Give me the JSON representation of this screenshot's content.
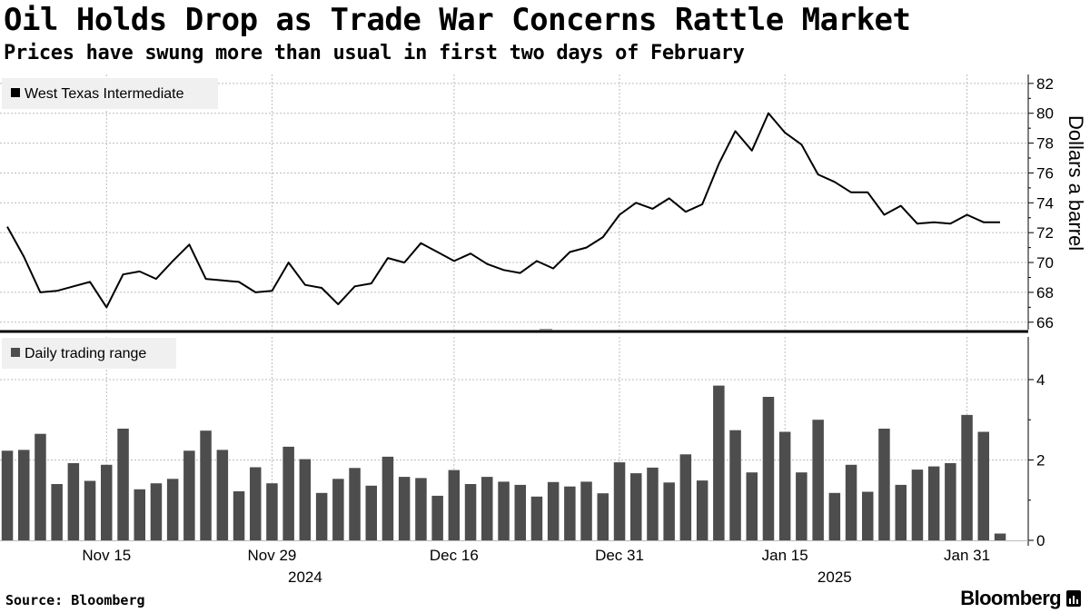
{
  "header": {
    "title": "Oil Holds Drop as Trade War Concerns Rattle Market",
    "subtitle": "Prices have swung more than usual in first two days of February"
  },
  "footer": {
    "source": "Source: Bloomberg",
    "brand": "Bloomberg"
  },
  "chart_data": [
    {
      "type": "line",
      "title": "West Texas Intermediate",
      "legend": "West Texas Intermediate",
      "legend_position": "top-left",
      "ylabel": "Dollars a barrel",
      "ylim": [
        65.5,
        82.6
      ],
      "yticks": [
        66,
        68,
        70,
        72,
        74,
        76,
        78,
        80,
        82
      ],
      "grid": true,
      "color": "#000000",
      "series": [
        {
          "name": "West Texas Intermediate",
          "values": [
            72.4,
            70.4,
            68.0,
            68.1,
            68.4,
            68.7,
            67.0,
            69.2,
            69.4,
            68.9,
            70.1,
            71.2,
            68.9,
            68.8,
            68.7,
            68.0,
            68.1,
            70.0,
            68.5,
            68.3,
            67.2,
            68.4,
            68.6,
            70.3,
            70.0,
            71.3,
            70.7,
            70.1,
            70.6,
            69.9,
            69.5,
            69.3,
            70.1,
            69.6,
            70.7,
            71.0,
            71.7,
            73.2,
            74.0,
            73.6,
            74.3,
            73.4,
            73.9,
            76.6,
            78.8,
            77.5,
            80.0,
            78.7,
            77.9,
            75.9,
            75.4,
            74.7,
            74.7,
            73.2,
            73.8,
            72.6,
            72.7,
            72.6,
            73.2,
            72.7,
            72.7
          ]
        }
      ]
    },
    {
      "type": "bar",
      "title": "Daily trading range",
      "legend": "Daily trading range",
      "legend_position": "top-left",
      "ylim": [
        0,
        4.7
      ],
      "yticks": [
        0,
        2,
        4
      ],
      "grid": true,
      "color": "#4d4d4d",
      "series": [
        {
          "name": "Daily trading range",
          "values": [
            2.23,
            2.25,
            2.65,
            1.4,
            1.92,
            1.48,
            1.88,
            2.78,
            1.27,
            1.42,
            1.53,
            2.23,
            2.73,
            2.25,
            1.22,
            1.82,
            1.42,
            2.33,
            2.02,
            1.18,
            1.53,
            1.8,
            1.36,
            2.08,
            1.58,
            1.55,
            1.11,
            1.75,
            1.4,
            1.58,
            1.46,
            1.38,
            1.09,
            1.45,
            1.34,
            1.46,
            1.17,
            1.94,
            1.67,
            1.81,
            1.44,
            2.14,
            1.49,
            3.85,
            2.74,
            1.69,
            3.57,
            2.7,
            1.69,
            3.0,
            1.18,
            1.88,
            1.21,
            2.78,
            1.38,
            1.76,
            1.84,
            1.92,
            3.12,
            2.7,
            0.17
          ]
        }
      ]
    }
  ],
  "x_axis": {
    "date_ticks": [
      {
        "label": "Nov 15",
        "index": 6
      },
      {
        "label": "Nov 29",
        "index": 16
      },
      {
        "label": "Dec 16",
        "index": 27
      },
      {
        "label": "Dec 31",
        "index": 37
      },
      {
        "label": "Jan 15",
        "index": 47
      },
      {
        "label": "Jan 31",
        "index": 58
      }
    ],
    "year_labels": [
      {
        "label": "2024",
        "index": 18
      },
      {
        "label": "2025",
        "index": 50
      }
    ]
  }
}
